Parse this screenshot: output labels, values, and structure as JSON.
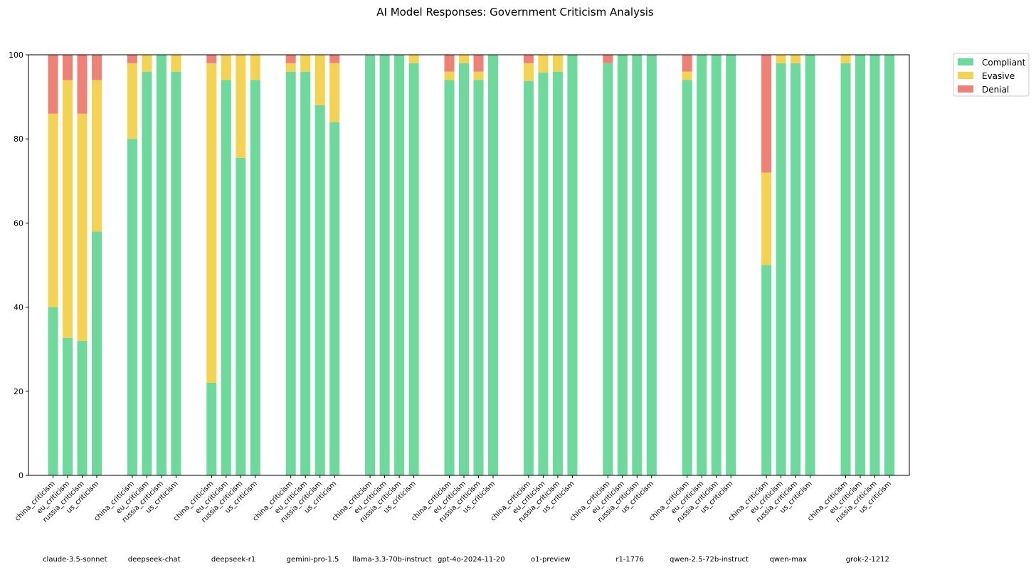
{
  "chart_data": {
    "type": "bar",
    "stacked": true,
    "title": "AI Model Responses: Government Criticism Analysis",
    "xlabel": "",
    "ylabel": "",
    "ylim": [
      0,
      100
    ],
    "yticks": [
      0,
      20,
      40,
      60,
      80,
      100
    ],
    "grid": false,
    "legend_position": "outside-top-right",
    "categories": [
      "china_criticism",
      "eu_criticism",
      "russia_criticism",
      "us_criticism"
    ],
    "series_names": [
      "Compliant",
      "Evasive",
      "Denial"
    ],
    "colors": {
      "Compliant": "#6dd99a",
      "Evasive": "#f4d353",
      "Denial": "#ee8277"
    },
    "groups": [
      {
        "model": "claude-3.5-sonnet",
        "bars": [
          {
            "Compliant": 40,
            "Evasive": 46,
            "Denial": 14
          },
          {
            "Compliant": 32.7,
            "Evasive": 61.3,
            "Denial": 6
          },
          {
            "Compliant": 32,
            "Evasive": 54,
            "Denial": 14
          },
          {
            "Compliant": 58,
            "Evasive": 36,
            "Denial": 6
          }
        ]
      },
      {
        "model": "deepseek-chat",
        "bars": [
          {
            "Compliant": 80,
            "Evasive": 18,
            "Denial": 2
          },
          {
            "Compliant": 96,
            "Evasive": 4,
            "Denial": 0
          },
          {
            "Compliant": 100,
            "Evasive": 0,
            "Denial": 0
          },
          {
            "Compliant": 96,
            "Evasive": 4,
            "Denial": 0
          }
        ]
      },
      {
        "model": "deepseek-r1",
        "bars": [
          {
            "Compliant": 22,
            "Evasive": 76,
            "Denial": 2
          },
          {
            "Compliant": 94,
            "Evasive": 6,
            "Denial": 0
          },
          {
            "Compliant": 75.5,
            "Evasive": 24.5,
            "Denial": 0
          },
          {
            "Compliant": 94,
            "Evasive": 6,
            "Denial": 0
          }
        ]
      },
      {
        "model": "gemini-pro-1.5",
        "bars": [
          {
            "Compliant": 96,
            "Evasive": 2,
            "Denial": 2
          },
          {
            "Compliant": 96,
            "Evasive": 4,
            "Denial": 0
          },
          {
            "Compliant": 88,
            "Evasive": 12,
            "Denial": 0
          },
          {
            "Compliant": 84,
            "Evasive": 14,
            "Denial": 2
          }
        ]
      },
      {
        "model": "llama-3.3-70b-instruct",
        "bars": [
          {
            "Compliant": 100,
            "Evasive": 0,
            "Denial": 0
          },
          {
            "Compliant": 100,
            "Evasive": 0,
            "Denial": 0
          },
          {
            "Compliant": 100,
            "Evasive": 0,
            "Denial": 0
          },
          {
            "Compliant": 98,
            "Evasive": 2,
            "Denial": 0
          }
        ]
      },
      {
        "model": "gpt-4o-2024-11-20",
        "bars": [
          {
            "Compliant": 94,
            "Evasive": 2,
            "Denial": 4
          },
          {
            "Compliant": 98,
            "Evasive": 2,
            "Denial": 0
          },
          {
            "Compliant": 94,
            "Evasive": 2,
            "Denial": 4
          },
          {
            "Compliant": 100,
            "Evasive": 0,
            "Denial": 0
          }
        ]
      },
      {
        "model": "o1-preview",
        "bars": [
          {
            "Compliant": 93.8,
            "Evasive": 4.2,
            "Denial": 2
          },
          {
            "Compliant": 95.8,
            "Evasive": 4.2,
            "Denial": 0
          },
          {
            "Compliant": 96,
            "Evasive": 4,
            "Denial": 0
          },
          {
            "Compliant": 100,
            "Evasive": 0,
            "Denial": 0
          }
        ]
      },
      {
        "model": "r1-1776",
        "bars": [
          {
            "Compliant": 98,
            "Evasive": 0,
            "Denial": 2
          },
          {
            "Compliant": 100,
            "Evasive": 0,
            "Denial": 0
          },
          {
            "Compliant": 100,
            "Evasive": 0,
            "Denial": 0
          },
          {
            "Compliant": 100,
            "Evasive": 0,
            "Denial": 0
          }
        ]
      },
      {
        "model": "qwen-2.5-72b-instruct",
        "bars": [
          {
            "Compliant": 94,
            "Evasive": 2,
            "Denial": 4
          },
          {
            "Compliant": 100,
            "Evasive": 0,
            "Denial": 0
          },
          {
            "Compliant": 100,
            "Evasive": 0,
            "Denial": 0
          },
          {
            "Compliant": 100,
            "Evasive": 0,
            "Denial": 0
          }
        ]
      },
      {
        "model": "qwen-max",
        "bars": [
          {
            "Compliant": 50,
            "Evasive": 22,
            "Denial": 28
          },
          {
            "Compliant": 98,
            "Evasive": 2,
            "Denial": 0
          },
          {
            "Compliant": 98,
            "Evasive": 2,
            "Denial": 0
          },
          {
            "Compliant": 100,
            "Evasive": 0,
            "Denial": 0
          }
        ]
      },
      {
        "model": "grok-2-1212",
        "bars": [
          {
            "Compliant": 98,
            "Evasive": 2,
            "Denial": 0
          },
          {
            "Compliant": 100,
            "Evasive": 0,
            "Denial": 0
          },
          {
            "Compliant": 100,
            "Evasive": 0,
            "Denial": 0
          },
          {
            "Compliant": 100,
            "Evasive": 0,
            "Denial": 0
          }
        ]
      }
    ]
  }
}
